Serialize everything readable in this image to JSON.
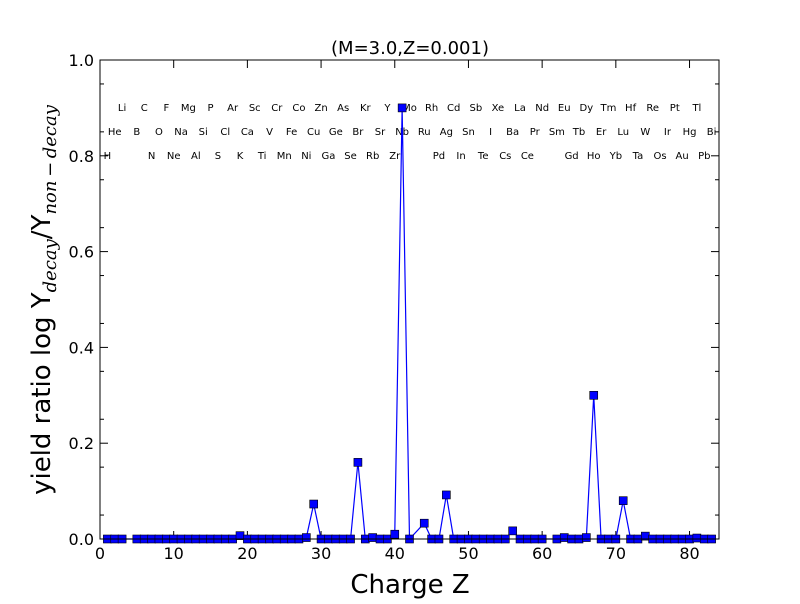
{
  "chart_data": {
    "type": "line",
    "title": "(M=3.0,Z=0.001)",
    "xlabel": "Charge Z",
    "ylabel": {
      "prefix": "yield ratio log Y",
      "sub1": "decay",
      "mid": "/Y",
      "sub2": "non − decay"
    },
    "xlim": [
      0,
      84
    ],
    "ylim": [
      0,
      1.0
    ],
    "xticks": [
      "0",
      "10",
      "20",
      "30",
      "40",
      "50",
      "60",
      "70",
      "80"
    ],
    "yticks": [
      "0.0",
      "0.2",
      "0.4",
      "0.6",
      "0.8",
      "1.0"
    ],
    "marker": "square",
    "color": "#0000ff",
    "grid": false,
    "missing_z": [
      4,
      43,
      61
    ],
    "nonzero_points": {
      "19": 0.007,
      "28": 0.003,
      "29": 0.073,
      "35": 0.16,
      "37": 0.003,
      "40": 0.01,
      "41": 0.9,
      "44": 0.033,
      "47": 0.092,
      "56": 0.017,
      "63": 0.003,
      "66": 0.003,
      "67": 0.3,
      "71": 0.08,
      "74": 0.006,
      "81": 0.002
    },
    "z_range": [
      1,
      83
    ],
    "elements": [
      "H",
      "He",
      "Li",
      "",
      "B",
      "C",
      "N",
      "O",
      "F",
      "Ne",
      "Na",
      "Mg",
      "Al",
      "Si",
      "P",
      "S",
      "Cl",
      "Ar",
      "K",
      "Ca",
      "Sc",
      "Ti",
      "V",
      "Cr",
      "Mn",
      "Fe",
      "Co",
      "Ni",
      "Cu",
      "Zn",
      "Ga",
      "Ge",
      "As",
      "Se",
      "Br",
      "Kr",
      "Rb",
      "Sr",
      "Y",
      "Zr",
      "Nb",
      "Mo",
      "",
      "Ru",
      "Rh",
      "Pd",
      "Ag",
      "Cd",
      "In",
      "Sn",
      "Sb",
      "Te",
      "I",
      "Xe",
      "Cs",
      "Ba",
      "La",
      "Ce",
      "Pr",
      "Nd",
      "",
      "Sm",
      "Eu",
      "Gd",
      "Tb",
      "Dy",
      "Ho",
      "Er",
      "Tm",
      "Yb",
      "Lu",
      "Hf",
      "Ta",
      "W",
      "Re",
      "Os",
      "Ir",
      "Pt",
      "Au",
      "Hg",
      "Tl",
      "Pb",
      "Bi"
    ]
  }
}
